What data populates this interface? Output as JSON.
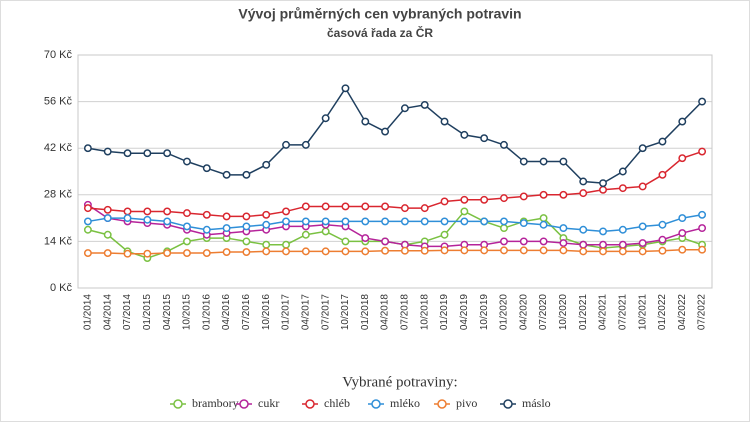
{
  "chart_data": {
    "type": "line",
    "title": "Vývoj průměrných cen vybraných potravin",
    "subtitle": "časová řada za ČR",
    "legend_title": "Vybrané potraviny:",
    "categories": [
      "01/2014",
      "04/2014",
      "07/2014",
      "01/2015",
      "04/2015",
      "10/2015",
      "01/2016",
      "04/2016",
      "07/2016",
      "10/2016",
      "01/2017",
      "04/2017",
      "07/2017",
      "10/2017",
      "01/2018",
      "04/2018",
      "07/2018",
      "10/2018",
      "01/2019",
      "04/2019",
      "10/2019",
      "01/2020",
      "04/2020",
      "07/2020",
      "10/2020",
      "01/2021",
      "04/2021",
      "07/2021",
      "10/2021",
      "01/2022",
      "04/2022",
      "07/2022"
    ],
    "ylim": [
      0,
      70
    ],
    "yticks": [
      {
        "value": 0,
        "label": "0 Kč"
      },
      {
        "value": 14,
        "label": "14 Kč"
      },
      {
        "value": 28,
        "label": "28 Kč"
      },
      {
        "value": 42,
        "label": "42 Kč"
      },
      {
        "value": 56,
        "label": "56 Kč"
      },
      {
        "value": 70,
        "label": "70 Kč"
      }
    ],
    "grid": true,
    "series": [
      {
        "name": "brambory",
        "color": "#7ac142",
        "values": [
          17.5,
          16,
          11,
          9,
          11,
          14,
          15,
          15,
          14,
          13,
          13,
          16,
          17,
          14,
          14,
          14,
          13,
          14,
          16,
          23,
          20,
          18,
          20,
          21,
          15,
          13,
          12,
          12.5,
          13,
          14,
          15,
          13
        ]
      },
      {
        "name": "cukr",
        "color": "#b5239a",
        "values": [
          25,
          21,
          20,
          19.5,
          19,
          17.5,
          16,
          16.5,
          17,
          17.5,
          18.5,
          18.5,
          19,
          18.5,
          15,
          14,
          13,
          12.5,
          12.5,
          13,
          13,
          14,
          14,
          14,
          13.5,
          13,
          13,
          13,
          13.5,
          14.5,
          16.5,
          18
        ]
      },
      {
        "name": "chléb",
        "color": "#d9262f",
        "values": [
          24,
          23.5,
          23,
          23,
          23,
          22.5,
          22,
          21.5,
          21.5,
          22,
          23,
          24.5,
          24.5,
          24.5,
          24.5,
          24.5,
          24,
          24,
          26,
          26.5,
          26.5,
          27,
          27.5,
          28,
          28,
          28.5,
          29.5,
          30,
          30.5,
          34,
          39,
          41
        ]
      },
      {
        "name": "mléko",
        "color": "#2f8fd8",
        "values": [
          20,
          21,
          21,
          20.5,
          20,
          18.5,
          17.5,
          18,
          18.5,
          19,
          20,
          20,
          20,
          20,
          20,
          20,
          20,
          20,
          20,
          20,
          20,
          20,
          19.5,
          19,
          18,
          17.5,
          17,
          17.5,
          18.5,
          19,
          21,
          22
        ]
      },
      {
        "name": "pivo",
        "color": "#ed7d31",
        "values": [
          10.5,
          10.5,
          10.3,
          10.3,
          10.5,
          10.5,
          10.5,
          10.8,
          10.8,
          11,
          11,
          11,
          11,
          11,
          11,
          11.2,
          11.2,
          11.2,
          11.3,
          11.3,
          11.3,
          11.3,
          11.3,
          11.3,
          11.3,
          11,
          11,
          11,
          11,
          11.2,
          11.5,
          11.5
        ]
      },
      {
        "name": "máslo",
        "color": "#1f3f5f",
        "values": [
          42,
          41,
          40.5,
          40.5,
          40.5,
          38,
          36,
          34,
          34,
          37,
          43,
          43,
          51,
          60,
          50,
          47,
          54,
          55,
          50,
          46,
          45,
          43,
          38,
          38,
          38,
          32,
          31.5,
          35,
          42,
          44,
          50,
          56
        ]
      }
    ]
  }
}
